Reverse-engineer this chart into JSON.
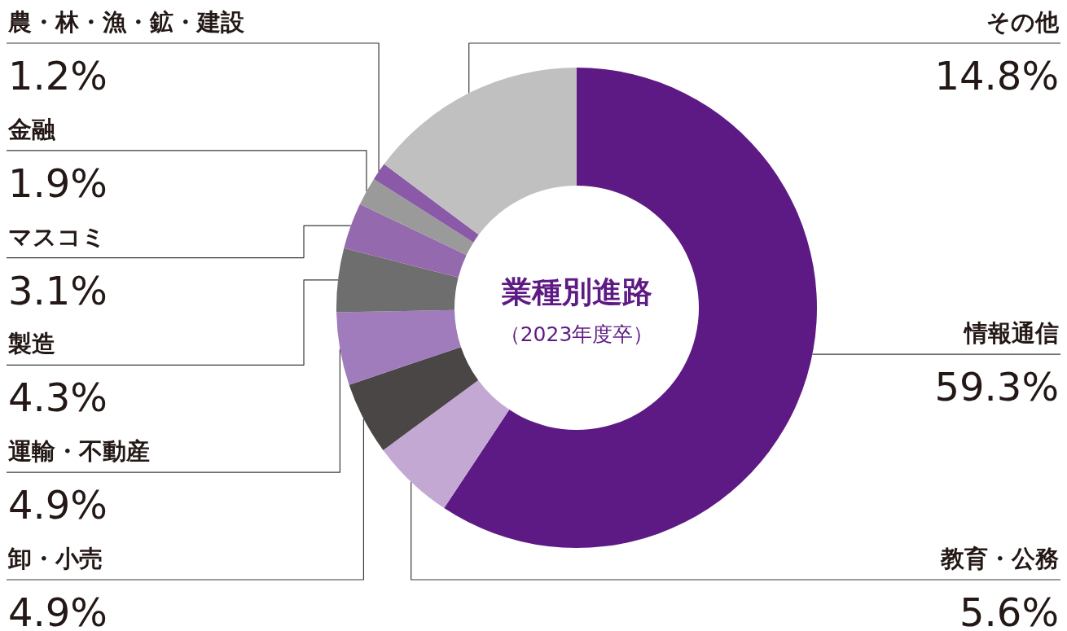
{
  "chart_data": {
    "type": "donut",
    "title": "業種別進路",
    "subtitle": "（2023年度卒）",
    "categories": [
      "情報通信",
      "教育・公務",
      "卸・小売",
      "運輸・不動産",
      "製造",
      "マスコミ",
      "金融",
      "農・林・漁・鉱・建設",
      "その他"
    ],
    "values": [
      59.3,
      5.6,
      4.9,
      4.9,
      4.3,
      3.1,
      1.9,
      1.2,
      14.8
    ],
    "value_labels": [
      "59.3%",
      "5.6%",
      "4.9%",
      "4.9%",
      "4.3%",
      "3.1%",
      "1.9%",
      "1.2%",
      "14.8%"
    ],
    "colors": [
      "#5e1a84",
      "#c4a8d4",
      "#4a4646",
      "#a07cbc",
      "#6e6e6e",
      "#9469ae",
      "#9a9a9a",
      "#8a5aa8",
      "#c0c0c0"
    ]
  }
}
